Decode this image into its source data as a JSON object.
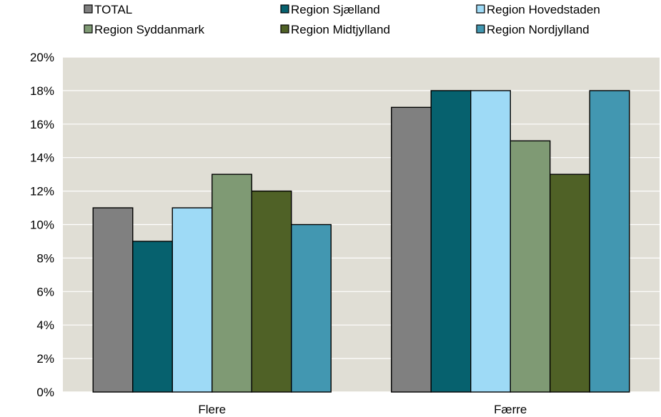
{
  "chart_data": {
    "type": "bar",
    "categories": [
      "Flere",
      "Færre"
    ],
    "series": [
      {
        "name": "TOTAL",
        "color": "#808080",
        "values": [
          11,
          17
        ]
      },
      {
        "name": "Region Sjælland",
        "color": "#06616e",
        "values": [
          9,
          18
        ]
      },
      {
        "name": "Region Hovedstaden",
        "color": "#9edaf6",
        "values": [
          11,
          18
        ]
      },
      {
        "name": "Region Syddanmark",
        "color": "#7f9a74",
        "values": [
          13,
          15
        ]
      },
      {
        "name": "Region Midtjylland",
        "color": "#4f6126",
        "values": [
          12,
          13
        ]
      },
      {
        "name": "Region Nordjylland",
        "color": "#4297b1",
        "values": [
          10,
          18
        ]
      }
    ],
    "y_ticks": [
      "0%",
      "2%",
      "4%",
      "6%",
      "8%",
      "10%",
      "12%",
      "14%",
      "16%",
      "18%",
      "20%"
    ],
    "ylim": [
      0,
      20
    ],
    "unit": "%",
    "grid": true,
    "legend_position": "top",
    "plot_background": "#e0ded5"
  }
}
